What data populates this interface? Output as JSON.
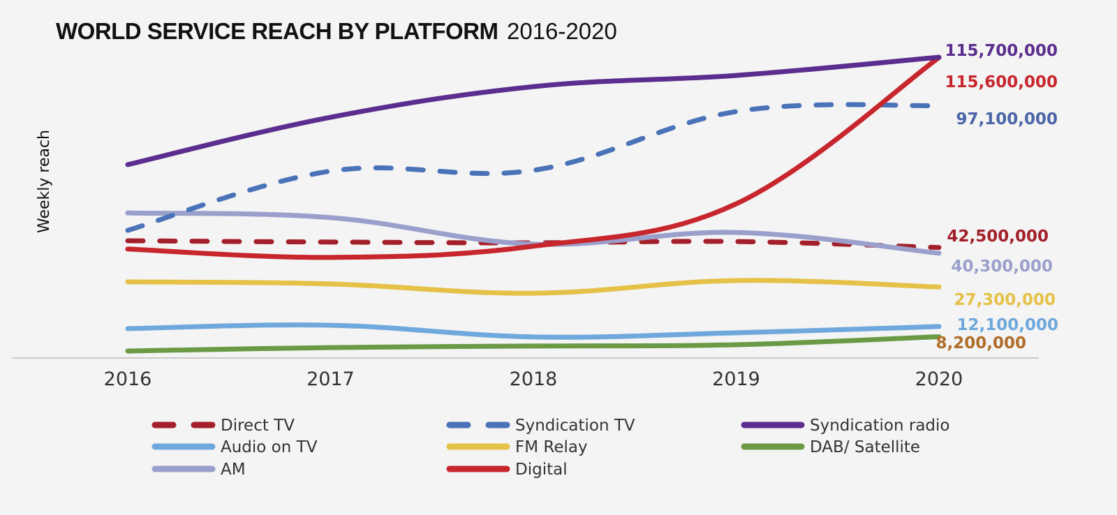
{
  "chart_data": {
    "type": "line",
    "title_bold": "WORLD SERVICE REACH BY PLATFORM",
    "title_rest": "2016-2020",
    "xlabel": "",
    "ylabel": "Weekly reach",
    "x": [
      "2016",
      "2017",
      "2018",
      "2019",
      "2020"
    ],
    "ylim": [
      0,
      120000000
    ],
    "grid": false,
    "legend_position": "bottom",
    "series": [
      {
        "key": "syndication_radio",
        "name": "Syndication radio",
        "color": "#5b2d8e",
        "dashed": false,
        "values": [
          74400000,
          92600000,
          104400000,
          108700000,
          115700000
        ],
        "end_label": "115,700,000",
        "end_label_color": "#5b2d8e"
      },
      {
        "key": "digital",
        "name": "Digital",
        "color": "#c8262d",
        "dashed": false,
        "values": [
          41900000,
          38700000,
          43000000,
          59300000,
          115600000
        ],
        "end_label": "115,600,000",
        "end_label_color": "#c8262d"
      },
      {
        "key": "syndication_tv",
        "name": "Syndication TV",
        "color": "#4a72b8",
        "dashed": true,
        "values": [
          49100000,
          71900000,
          72200000,
          94800000,
          97100000
        ],
        "end_label": "97,100,000",
        "end_label_color": "#4a65a8"
      },
      {
        "key": "direct_tv",
        "name": "Direct TV",
        "color": "#a31f2a",
        "dashed": true,
        "values": [
          45100000,
          44600000,
          44300000,
          44800000,
          42500000
        ],
        "end_label": "42,500,000",
        "end_label_color": "#a31f2a"
      },
      {
        "key": "am",
        "name": "AM",
        "color": "#9a9fcb",
        "dashed": false,
        "values": [
          55800000,
          54000000,
          43800000,
          48300000,
          40300000
        ],
        "end_label": "40,300,000",
        "end_label_color": "#9a9fcb"
      },
      {
        "key": "fm_relay",
        "name": "FM Relay",
        "color": "#e6c148",
        "dashed": false,
        "values": [
          29300000,
          28500000,
          24900000,
          29800000,
          27300000
        ],
        "end_label": "27,300,000",
        "end_label_color": "#e6c148"
      },
      {
        "key": "audio_on_tv",
        "name": "Audio on TV",
        "color": "#6fa8dc",
        "dashed": false,
        "values": [
          11300000,
          12600000,
          8100000,
          9700000,
          12100000
        ],
        "end_label": "12,100,000",
        "end_label_color": "#6fa8dc"
      },
      {
        "key": "dab_satellite",
        "name": "DAB/ Satellite",
        "color": "#6a9a45",
        "dashed": false,
        "values": [
          2700000,
          4000000,
          4600000,
          5100000,
          8200000
        ],
        "end_label": "8,200,000",
        "end_label_color": "#b06d2a"
      }
    ],
    "legend_order": [
      "direct_tv",
      "syndication_tv",
      "syndication_radio",
      "audio_on_tv",
      "fm_relay",
      "dab_satellite",
      "am",
      "digital"
    ]
  }
}
